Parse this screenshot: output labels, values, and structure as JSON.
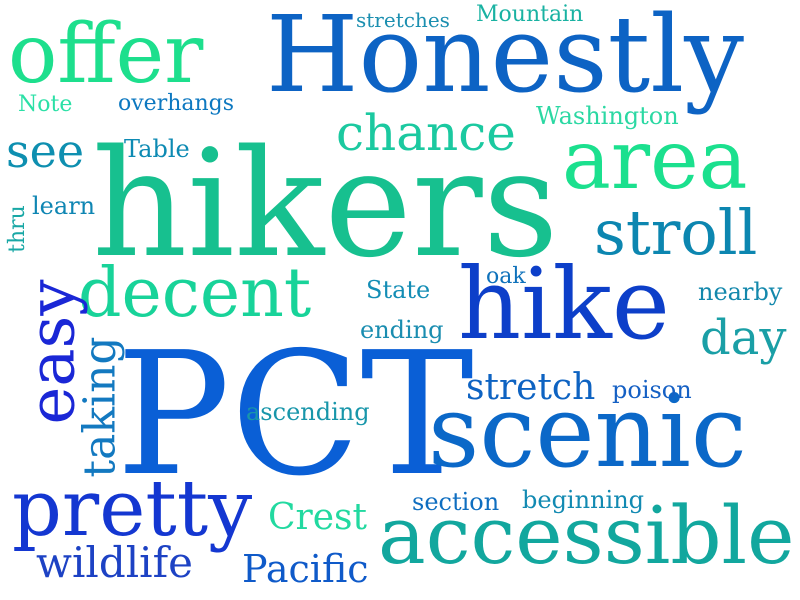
{
  "words": [
    {
      "id": "PCT",
      "text": "PCT",
      "color": "#0a5fd6"
    },
    {
      "id": "hikers",
      "text": "hikers",
      "color": "#17c08f"
    },
    {
      "id": "Honestly",
      "text": "Honestly",
      "color": "#0d63c4"
    },
    {
      "id": "hike",
      "text": "hike",
      "color": "#0d3fc9"
    },
    {
      "id": "scenic",
      "text": "scenic",
      "color": "#0b68c8"
    },
    {
      "id": "accessible",
      "text": "accessible",
      "color": "#12a79e"
    },
    {
      "id": "offer",
      "text": "offer",
      "color": "#1ddf8d"
    },
    {
      "id": "area",
      "text": "area",
      "color": "#1be08e"
    },
    {
      "id": "pretty",
      "text": "pretty",
      "color": "#1437d1"
    },
    {
      "id": "decent",
      "text": "decent",
      "color": "#18d399"
    },
    {
      "id": "stroll",
      "text": "stroll",
      "color": "#0c86b0"
    },
    {
      "id": "easy",
      "text": "easy",
      "color": "#1a27d6"
    },
    {
      "id": "chance",
      "text": "chance",
      "color": "#1bc9a0"
    },
    {
      "id": "taking",
      "text": "taking",
      "color": "#1379c0"
    },
    {
      "id": "see",
      "text": "see",
      "color": "#0e8fb0"
    },
    {
      "id": "day",
      "text": "day",
      "color": "#1a9fa6"
    },
    {
      "id": "stretch",
      "text": "stretch",
      "color": "#0e63c2"
    },
    {
      "id": "wildlife",
      "text": "wildlife",
      "color": "#1d42c4"
    },
    {
      "id": "Pacific",
      "text": "Pacific",
      "color": "#0f5ac9"
    },
    {
      "id": "Crest",
      "text": "Crest",
      "color": "#22d9a0"
    },
    {
      "id": "Mountain",
      "text": "Mountain",
      "color": "#19b2a2"
    },
    {
      "id": "stretches",
      "text": "stretches",
      "color": "#1c8fb0"
    },
    {
      "id": "Note",
      "text": "Note",
      "color": "#2be0a6"
    },
    {
      "id": "overhangs",
      "text": "overhangs",
      "color": "#0d78c0"
    },
    {
      "id": "Washington",
      "text": "Washington",
      "color": "#2bd8a3"
    },
    {
      "id": "Table",
      "text": "Table",
      "color": "#0d8ab3"
    },
    {
      "id": "learn",
      "text": "learn",
      "color": "#0f86b3"
    },
    {
      "id": "thru",
      "text": "thru",
      "color": "#18a7a5"
    },
    {
      "id": "State",
      "text": "State",
      "color": "#138db5"
    },
    {
      "id": "oak",
      "text": "oak",
      "color": "#0f72bb"
    },
    {
      "id": "nearby",
      "text": "nearby",
      "color": "#1388ac"
    },
    {
      "id": "ending",
      "text": "ending",
      "color": "#1a8db0"
    },
    {
      "id": "poison",
      "text": "poison",
      "color": "#1560c4"
    },
    {
      "id": "ascending",
      "text": "ascending",
      "color": "#1896aa"
    },
    {
      "id": "section",
      "text": "section",
      "color": "#0f6ec0"
    },
    {
      "id": "beginning",
      "text": "beginning",
      "color": "#128ab2"
    }
  ]
}
